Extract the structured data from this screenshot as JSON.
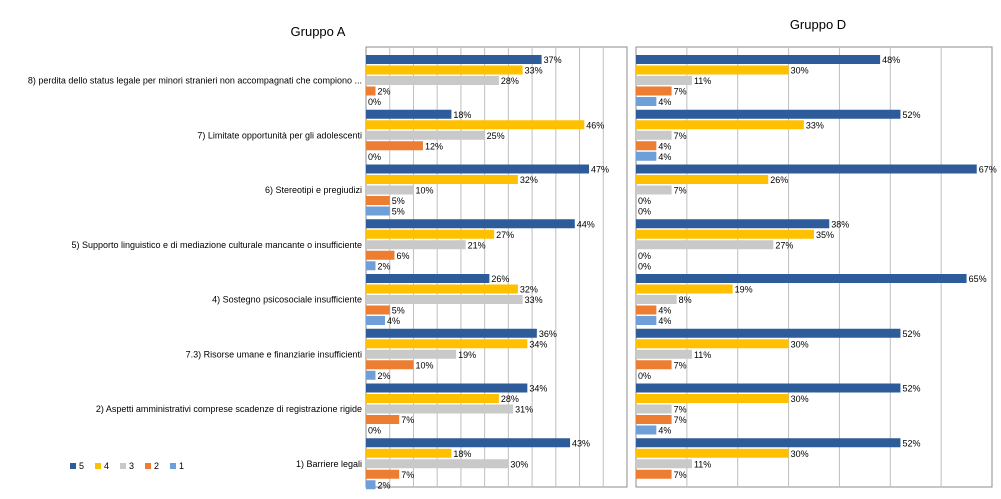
{
  "chart_data": {
    "type": "bar",
    "orientation": "horizontal",
    "categories": [
      "8) perdita dello status legale per minori stranieri non accompagnati che compiono ...",
      "7) Limitate opportunità per gli adolescenti",
      "6) Stereotipi e pregiudizi",
      "5) Supporto linguistico e di mediazione culturale mancante o insufficiente",
      "4) Sostegno psicosociale insufficiente",
      "7.3) Risorse umane e finanziarie insufficienti",
      "2) Aspetti  amministrativi comprese scadenze di registrazione rigide",
      "1) Barriere legali"
    ],
    "legend": {
      "placement": "bottom-left",
      "entries": [
        "5",
        "4",
        "3",
        "2",
        "1"
      ]
    },
    "colors": {
      "5": "#2E5C9A",
      "4": "#FFC000",
      "3": "#C9C9C9",
      "2": "#ED7D31",
      "1": "#6F9FD8"
    },
    "grid": true,
    "panels": [
      {
        "title": "Gruppo A",
        "xlim": [
          0,
          55
        ],
        "gridline_step": 5,
        "series": [
          {
            "name": "5",
            "values": [
              37,
              18,
              47,
              44,
              26,
              36,
              34,
              43
            ]
          },
          {
            "name": "4",
            "values": [
              33,
              46,
              32,
              27,
              32,
              34,
              28,
              18
            ]
          },
          {
            "name": "3",
            "values": [
              28,
              25,
              10,
              21,
              33,
              19,
              31,
              30
            ]
          },
          {
            "name": "2",
            "values": [
              2,
              12,
              5,
              6,
              5,
              10,
              7,
              7
            ]
          },
          {
            "name": "1",
            "values": [
              0,
              0,
              5,
              2,
              4,
              2,
              0,
              2
            ]
          }
        ]
      },
      {
        "title": "Gruppo D",
        "xlim": [
          0,
          70
        ],
        "gridline_step": 10,
        "series": [
          {
            "name": "5",
            "values": [
              48,
              52,
              67,
              38,
              65,
              52,
              52,
              52
            ]
          },
          {
            "name": "4",
            "values": [
              30,
              33,
              26,
              35,
              19,
              30,
              30,
              30
            ]
          },
          {
            "name": "3",
            "values": [
              11,
              7,
              7,
              27,
              8,
              11,
              7,
              11
            ]
          },
          {
            "name": "2",
            "values": [
              7,
              4,
              0,
              0,
              4,
              7,
              7,
              7
            ]
          },
          {
            "name": "1",
            "values": [
              4,
              4,
              0,
              0,
              4,
              0,
              4,
              null
            ]
          }
        ]
      }
    ]
  }
}
